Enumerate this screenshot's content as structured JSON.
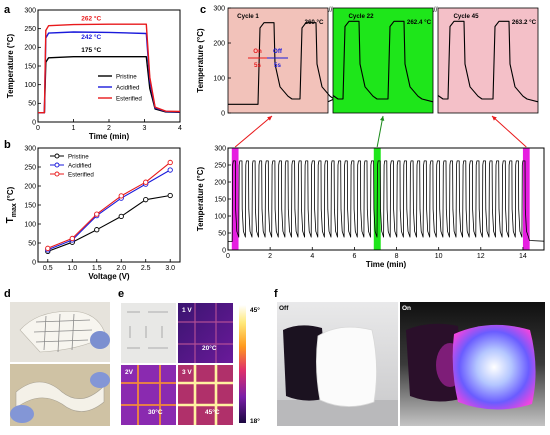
{
  "panel_labels": {
    "a": "a",
    "b": "b",
    "c": "c",
    "d": "d",
    "e": "e",
    "f": "f"
  },
  "chart_data": [
    {
      "id": "a",
      "type": "line",
      "xlabel": "Time (min)",
      "ylabel": "Temperature (°C)",
      "xlim": [
        0,
        4
      ],
      "ylim": [
        0,
        300
      ],
      "xticks": [
        0,
        1,
        2,
        3,
        4
      ],
      "yticks": [
        0,
        50,
        100,
        150,
        200,
        250,
        300
      ],
      "legend_position": "center-right",
      "series": [
        {
          "name": "Pristine",
          "color": "#000000",
          "points": [
            [
              0,
              25
            ],
            [
              0.18,
              25
            ],
            [
              0.22,
              160
            ],
            [
              0.3,
              172
            ],
            [
              1.0,
              175
            ],
            [
              2.0,
              175
            ],
            [
              3.05,
              175
            ],
            [
              3.15,
              90
            ],
            [
              3.3,
              35
            ],
            [
              3.6,
              27
            ],
            [
              4.0,
              26
            ]
          ]
        },
        {
          "name": "Acidified",
          "color": "#1a1adb",
          "points": [
            [
              0,
              25
            ],
            [
              0.18,
              25
            ],
            [
              0.22,
              225
            ],
            [
              0.3,
              238
            ],
            [
              1.0,
              241
            ],
            [
              2.0,
              240
            ],
            [
              3.05,
              237
            ],
            [
              3.15,
              110
            ],
            [
              3.3,
              38
            ],
            [
              3.6,
              28
            ],
            [
              4.0,
              27
            ]
          ]
        },
        {
          "name": "Esterified",
          "color": "#e8191b",
          "points": [
            [
              0,
              25
            ],
            [
              0.18,
              25
            ],
            [
              0.22,
              245
            ],
            [
              0.3,
              258
            ],
            [
              1.0,
              261
            ],
            [
              2.0,
              262
            ],
            [
              3.05,
              262
            ],
            [
              3.15,
              120
            ],
            [
              3.3,
              40
            ],
            [
              3.6,
              29
            ],
            [
              4.0,
              28
            ]
          ]
        }
      ],
      "annotations": [
        {
          "text": "262 °C",
          "x": 1.5,
          "y": 272,
          "color": "#e8191b"
        },
        {
          "text": "242 °C",
          "x": 1.5,
          "y": 222,
          "color": "#1a1adb"
        },
        {
          "text": "175 °C",
          "x": 1.5,
          "y": 188,
          "color": "#000000"
        }
      ]
    },
    {
      "id": "b",
      "type": "line",
      "xlabel": "Voltage (V)",
      "ylabel": "T",
      "ylabel_sub": "max",
      "ylabel_unit": "(°C)",
      "xlim": [
        0.3,
        3.2
      ],
      "ylim": [
        0,
        300
      ],
      "xticks": [
        0.5,
        1.0,
        1.5,
        2.0,
        2.5,
        3.0
      ],
      "xticklabels": [
        "0.5",
        "1.0",
        "1.5",
        "2.0",
        "2.5",
        "3.0"
      ],
      "yticks": [
        0,
        50,
        100,
        150,
        200,
        250,
        300
      ],
      "legend_position": "top-left",
      "x": [
        0.5,
        1.0,
        1.5,
        2.0,
        2.5,
        3.0
      ],
      "series": [
        {
          "name": "Pristine",
          "color": "#000000",
          "values": [
            28,
            52,
            85,
            120,
            164,
            175
          ]
        },
        {
          "name": "Acidified",
          "color": "#1a1adb",
          "values": [
            32,
            58,
            122,
            168,
            205,
            242
          ]
        },
        {
          "name": "Esterified",
          "color": "#e8191b",
          "values": [
            36,
            62,
            126,
            174,
            210,
            262
          ]
        }
      ]
    },
    {
      "id": "c-top",
      "type": "line",
      "ylabel": "Temperature (°C)",
      "ylim": [
        0,
        300
      ],
      "yticks": [
        0,
        100,
        200,
        300
      ],
      "cycles": [
        {
          "name": "Cycle 1",
          "value_label": "260 °C",
          "color": "#f2c2ba"
        },
        {
          "name": "Cycle 22",
          "value_label": "262.4 °C",
          "color": "#1ee61a"
        },
        {
          "name": "Cycle 45",
          "value_label": "263.2 °C",
          "color": "#f4c0c8"
        }
      ],
      "on_label": "On",
      "on_duration": "5s",
      "off_label": "Off",
      "off_duration": "5s"
    },
    {
      "id": "c-bottom",
      "type": "line",
      "xlabel": "Time (min)",
      "ylabel": "Temperature (°C)",
      "xlim": [
        0,
        15
      ],
      "ylim": [
        0,
        300
      ],
      "xticks": [
        0,
        2,
        4,
        6,
        8,
        10,
        12,
        14
      ],
      "yticks": [
        0,
        50,
        100,
        150,
        200,
        250,
        300
      ],
      "cycle_count": 45,
      "peak": 262,
      "trough": 38,
      "period_min": 0.3125,
      "highlights": [
        {
          "x0": 0.18,
          "x1": 0.5,
          "color": "#e61ee0"
        },
        {
          "x0": 6.92,
          "x1": 7.25,
          "color": "#1ee61a"
        },
        {
          "x0": 14.0,
          "x1": 14.32,
          "color": "#e61ee0"
        }
      ]
    }
  ],
  "panel_e": {
    "labels": [
      "1 V",
      "2V",
      "3 V"
    ],
    "temps": [
      "20°C",
      "30°C",
      "45°C"
    ],
    "scale_max": "45°",
    "scale_min": "18°"
  },
  "panel_f": {
    "off_label": "Off",
    "on_label": "On"
  }
}
